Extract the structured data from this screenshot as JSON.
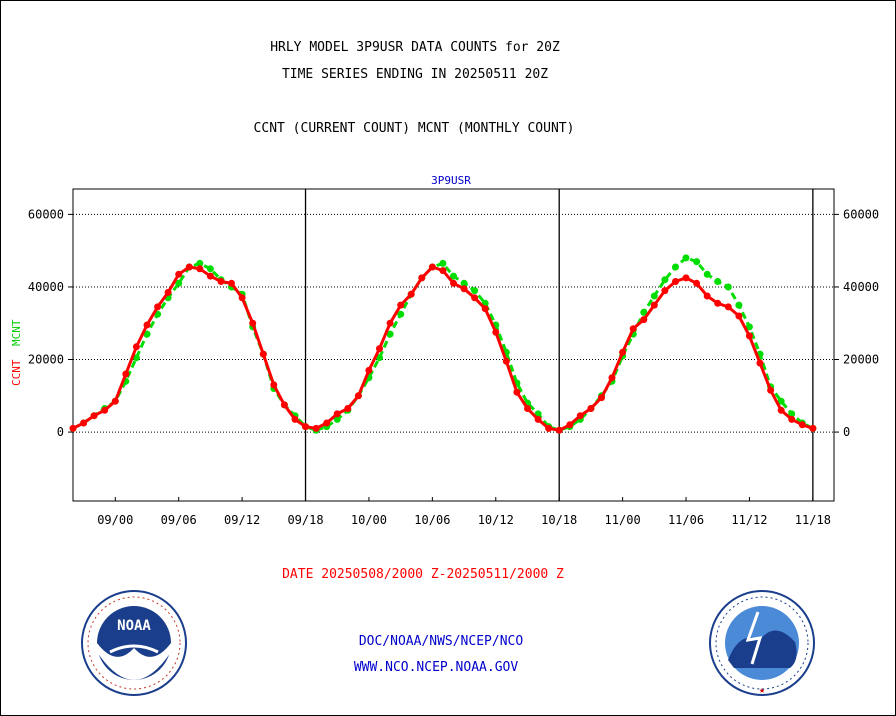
{
  "header": {
    "line1": "HRLY MODEL 3P9USR DATA COUNTS for 20Z",
    "line2": "TIME SERIES ENDING IN 20250511 20Z",
    "line3": "CCNT (CURRENT COUNT) MCNT (MONTHLY COUNT)"
  },
  "footer": {
    "date_range": "DATE 20250508/2000 Z-20250511/2000 Z",
    "org_path": "DOC/NOAA/NWS/NCEP/NCO",
    "website": "WWW.NCO.NCEP.NOAA.GOV"
  },
  "logos": {
    "left": {
      "name": "noaa-logo",
      "text": "NOAA"
    },
    "right": {
      "name": "nws-logo",
      "text": "NATIONAL WEATHER SERVICE"
    }
  },
  "colors": {
    "ccnt": "#ff0000",
    "mcnt": "#00dd00",
    "title": "#000000",
    "panel_title": "#0000cc",
    "footer_link": "#0000cc",
    "date_text": "#ff0000"
  },
  "chart_data": {
    "type": "line",
    "title": "3P9USR",
    "ylabel_series": [
      "CCNT",
      "MCNT"
    ],
    "x_unit": "hours since 20250508/2000 Z",
    "x_range": [
      0,
      72
    ],
    "ylim": [
      -19000,
      67000
    ],
    "yticks": [
      0,
      20000,
      40000,
      60000
    ],
    "ytick_labels": [
      "0",
      "20000",
      "40000",
      "60000"
    ],
    "xticks": [
      4,
      10,
      16,
      22,
      28,
      34,
      40,
      46,
      52,
      58,
      64,
      70
    ],
    "xtick_labels": [
      "09/00",
      "09/06",
      "09/12",
      "09/18",
      "10/00",
      "10/06",
      "10/12",
      "10/18",
      "11/00",
      "11/06",
      "11/12",
      "11/18"
    ],
    "day_lines": [
      22,
      46,
      70
    ],
    "grid": true,
    "series": [
      {
        "name": "CCNT",
        "values": [
          1000,
          2500,
          4500,
          6000,
          8500,
          16000,
          23500,
          29500,
          34500,
          38500,
          43500,
          45500,
          45000,
          43000,
          41500,
          41000,
          37000,
          30000,
          21500,
          13000,
          7500,
          3500,
          1500,
          1000,
          2500,
          5000,
          6500,
          10000,
          17000,
          23000,
          30000,
          35000,
          38000,
          42500,
          45500,
          44500,
          41000,
          39500,
          37000,
          34000,
          27500,
          19500,
          11000,
          6500,
          3500,
          1000,
          500,
          2000,
          4500,
          6500,
          9500,
          15000,
          22000,
          28500,
          31000,
          35000,
          39000,
          41500,
          42500,
          41000,
          37500,
          35500,
          34500,
          32000,
          26500,
          19000,
          11500,
          6000,
          3500,
          2000,
          1000
        ]
      },
      {
        "name": "MCNT",
        "values": [
          1000,
          2500,
          4500,
          6500,
          8500,
          14000,
          20500,
          27000,
          32500,
          37000,
          41000,
          45500,
          46500,
          45000,
          42000,
          40000,
          38000,
          29000,
          21500,
          12000,
          7500,
          4500,
          1500,
          500,
          1500,
          3500,
          6000,
          10000,
          15000,
          20500,
          27000,
          32500,
          38000,
          42500,
          45500,
          46500,
          43000,
          41000,
          39000,
          35500,
          29500,
          22000,
          13500,
          8000,
          5000,
          1500,
          500,
          1500,
          3500,
          6500,
          10000,
          14000,
          21000,
          27000,
          33000,
          37500,
          42000,
          45500,
          48000,
          47000,
          43500,
          41500,
          40000,
          35000,
          29000,
          21500,
          12500,
          8500,
          5000,
          2500,
          1000
        ]
      }
    ]
  }
}
